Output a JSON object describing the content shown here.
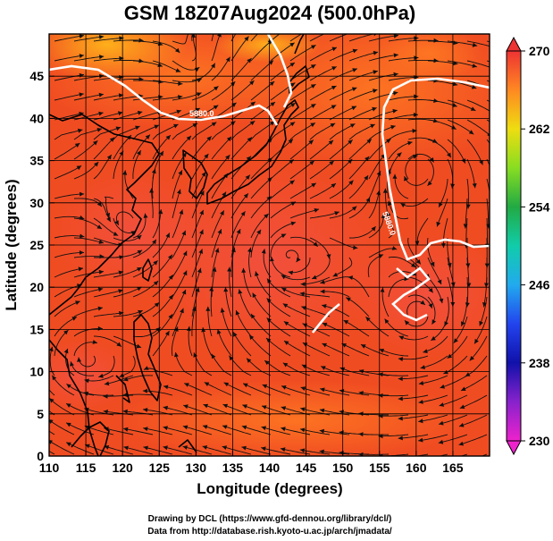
{
  "title": "GSM 18Z07Aug2024 (500.0hPa)",
  "xlabel": "Longitude (degrees)",
  "ylabel": "Latitude  (degrees)",
  "credits": [
    "Drawing by DCL (https://www.gfd-dennou.org/library/dcl/)",
    "Data from http://database.rish.kyoto-u.ac.jp/arch/jmadata/"
  ],
  "map": {
    "lon_range": [
      110,
      170
    ],
    "lat_range": [
      0,
      50
    ],
    "lon_ticks": [
      110,
      115,
      120,
      125,
      130,
      135,
      140,
      145,
      150,
      155,
      160,
      165
    ],
    "lat_ticks": [
      0,
      5,
      10,
      15,
      20,
      25,
      30,
      35,
      40,
      45
    ],
    "grid": true,
    "field": "temperature",
    "overlays": [
      "coastlines",
      "streamlines",
      "contour 5880"
    ],
    "contour_label": "5880.0"
  },
  "colorbar": {
    "ticks": [
      230,
      238,
      246,
      254,
      262,
      270
    ],
    "range": [
      230,
      270
    ],
    "stops": [
      {
        "v": 230,
        "color": "#ee22cc"
      },
      {
        "v": 234,
        "color": "#8822cc"
      },
      {
        "v": 238,
        "color": "#1111aa"
      },
      {
        "v": 242,
        "color": "#2244ee"
      },
      {
        "v": 246,
        "color": "#22aaee"
      },
      {
        "v": 250,
        "color": "#11ccaa"
      },
      {
        "v": 254,
        "color": "#22aa44"
      },
      {
        "v": 258,
        "color": "#88dd22"
      },
      {
        "v": 262,
        "color": "#eedd11"
      },
      {
        "v": 266,
        "color": "#ff8822"
      },
      {
        "v": 270,
        "color": "#ee3333"
      }
    ]
  }
}
